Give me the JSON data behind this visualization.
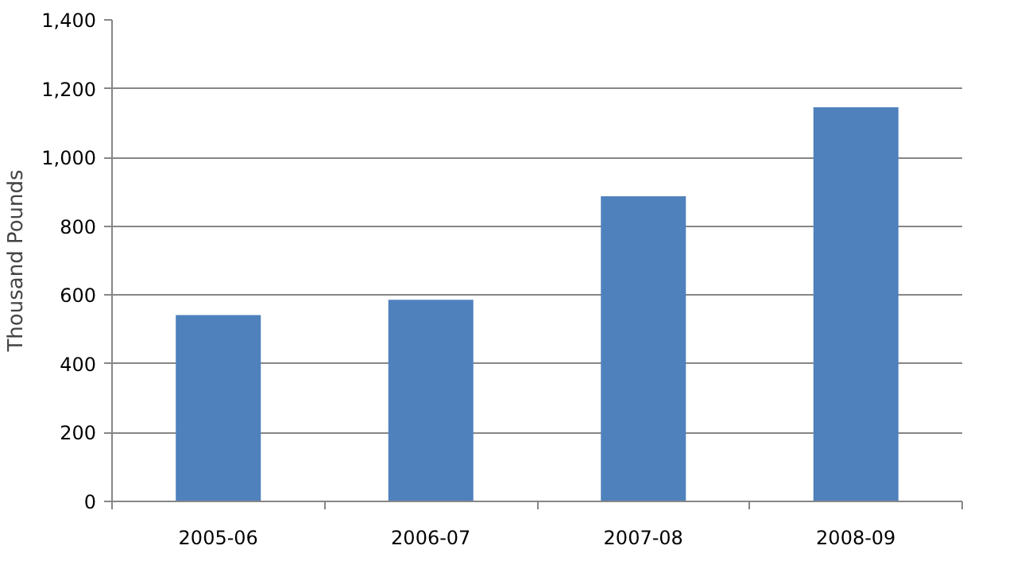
{
  "chart_data": {
    "type": "bar",
    "ylabel": "Thousand Pounds",
    "categories": [
      "2005-06",
      "2006-07",
      "2007-08",
      "2008-09"
    ],
    "values": [
      542,
      586,
      887,
      1146
    ],
    "color": "#4f81bd",
    "ylim": [
      0,
      1400
    ],
    "yticks": [
      {
        "value": 0,
        "label": "0"
      },
      {
        "value": 200,
        "label": "200"
      },
      {
        "value": 400,
        "label": "400"
      },
      {
        "value": 600,
        "label": "600"
      },
      {
        "value": 800,
        "label": "800"
      },
      {
        "value": 1000,
        "label": "1,000"
      },
      {
        "value": 1200,
        "label": "1,200"
      },
      {
        "value": 1400,
        "label": "1,400"
      }
    ],
    "grid": "y"
  }
}
